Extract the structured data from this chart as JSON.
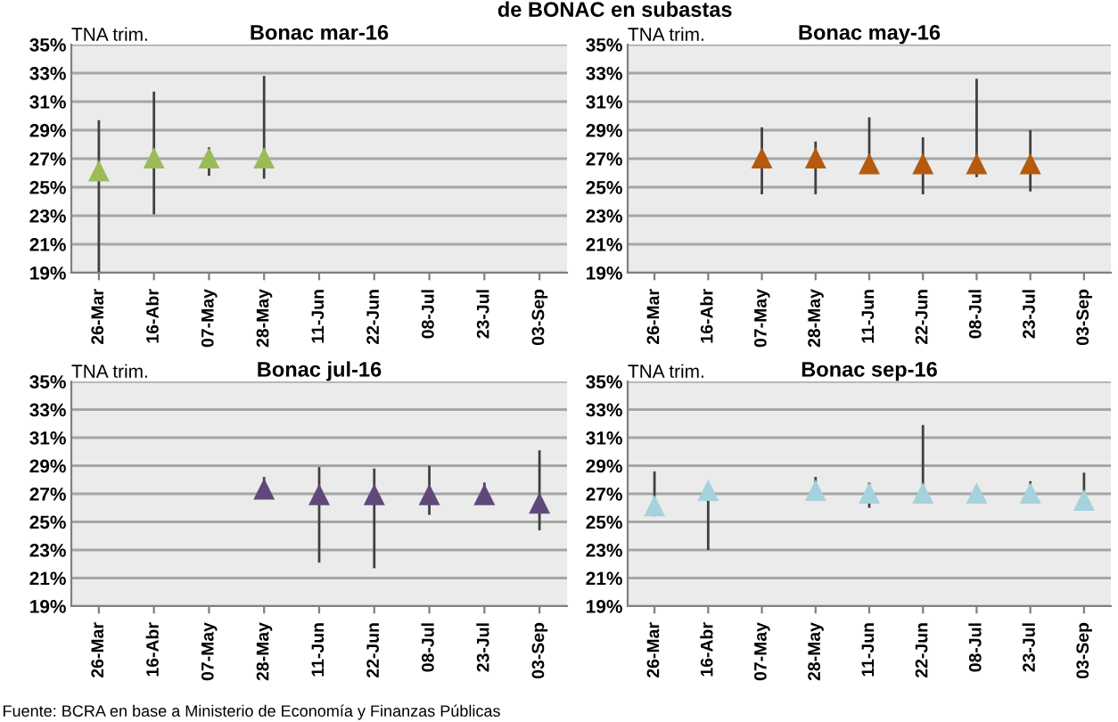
{
  "chart_data": [
    {
      "type": "scatter",
      "title": "Bonac mar-16",
      "ylabel": "TNA trim.",
      "annotations": [
        "de BONAC en subastas"
      ],
      "categories": [
        "26-Mar",
        "16-Abr",
        "07-May",
        "28-May",
        "11-Jun",
        "22-Jun",
        "08-Jul",
        "23-Jul",
        "03-Sep"
      ],
      "series": [
        {
          "color": "#9bbb59",
          "values": [
            26.1,
            27.0,
            27.0,
            27.0,
            null,
            null,
            null,
            null,
            null
          ],
          "errors": [
            [
              19,
              29.7
            ],
            [
              23.1,
              31.7
            ],
            [
              25.8,
              27.8
            ],
            [
              25.6,
              32.8
            ],
            null,
            null,
            null,
            null,
            null
          ]
        }
      ],
      "ylim": [
        19,
        35
      ],
      "yticks": [
        {
          "value": 19,
          "label": "19%"
        },
        {
          "value": 21,
          "label": "21%"
        },
        {
          "value": 23,
          "label": "23%"
        },
        {
          "value": 25,
          "label": "25%"
        },
        {
          "value": 27,
          "label": "27%"
        },
        {
          "value": 29,
          "label": "29%"
        },
        {
          "value": 31,
          "label": "31%"
        },
        {
          "value": 33,
          "label": "33%"
        },
        {
          "value": 35,
          "label": "35%"
        }
      ],
      "grid": "y",
      "marker": "triangle",
      "legend": false
    },
    {
      "type": "scatter",
      "title": "Bonac may-16",
      "ylabel": "TNA trim.",
      "categories": [
        "26-Mar",
        "16-Abr",
        "07-May",
        "28-May",
        "11-Jun",
        "22-Jun",
        "08-Jul",
        "23-Jul",
        "03-Sep"
      ],
      "series": [
        {
          "color": "#b55a0e",
          "values": [
            null,
            null,
            27.0,
            27.0,
            26.6,
            26.6,
            26.6,
            26.6,
            null
          ],
          "errors": [
            null,
            null,
            [
              24.5,
              29.2
            ],
            [
              24.5,
              28.2
            ],
            [
              26.0,
              29.9
            ],
            [
              24.5,
              28.5
            ],
            [
              25.7,
              32.6
            ],
            [
              24.7,
              29.0
            ],
            null
          ]
        }
      ],
      "ylim": [
        19,
        35
      ],
      "yticks": [
        {
          "value": 19,
          "label": "19%"
        },
        {
          "value": 21,
          "label": "21%"
        },
        {
          "value": 23,
          "label": "23%"
        },
        {
          "value": 25,
          "label": "25%"
        },
        {
          "value": 27,
          "label": "27%"
        },
        {
          "value": 29,
          "label": "29%"
        },
        {
          "value": 31,
          "label": "31%"
        },
        {
          "value": 33,
          "label": "33%"
        },
        {
          "value": 35,
          "label": "35%"
        }
      ],
      "grid": "y",
      "marker": "triangle",
      "legend": false
    },
    {
      "type": "scatter",
      "title": "Bonac jul-16",
      "ylabel": "TNA trim.",
      "annotations": [
        "Fuente: BCRA en base a Ministerio de Economía y Finanzas Públicas"
      ],
      "categories": [
        "26-Mar",
        "16-Abr",
        "07-May",
        "28-May",
        "11-Jun",
        "22-Jun",
        "08-Jul",
        "23-Jul",
        "03-Sep"
      ],
      "series": [
        {
          "color": "#60497a",
          "values": [
            null,
            null,
            null,
            27.3,
            26.9,
            26.9,
            26.9,
            26.9,
            26.3
          ],
          "errors": [
            null,
            null,
            null,
            [
              27.0,
              28.2
            ],
            [
              22.1,
              28.9
            ],
            [
              21.7,
              28.8
            ],
            [
              25.5,
              29.0
            ],
            [
              26.4,
              27.8
            ],
            [
              24.4,
              30.1
            ]
          ]
        }
      ],
      "ylim": [
        19,
        35
      ],
      "yticks": [
        {
          "value": 19,
          "label": "19%"
        },
        {
          "value": 21,
          "label": "21%"
        },
        {
          "value": 23,
          "label": "23%"
        },
        {
          "value": 25,
          "label": "25%"
        },
        {
          "value": 27,
          "label": "27%"
        },
        {
          "value": 29,
          "label": "29%"
        },
        {
          "value": 31,
          "label": "31%"
        },
        {
          "value": 33,
          "label": "33%"
        },
        {
          "value": 35,
          "label": "35%"
        }
      ],
      "grid": "y",
      "marker": "triangle",
      "legend": false
    },
    {
      "type": "scatter",
      "title": "Bonac sep-16",
      "ylabel": "TNA trim.",
      "categories": [
        "26-Mar",
        "16-Abr",
        "07-May",
        "28-May",
        "11-Jun",
        "22-Jun",
        "08-Jul",
        "23-Jul",
        "03-Sep"
      ],
      "series": [
        {
          "color": "#a5d2dc",
          "values": [
            26.1,
            27.2,
            null,
            27.2,
            27.0,
            27.0,
            27.0,
            27.0,
            26.5
          ],
          "errors": [
            [
              25.4,
              28.6
            ],
            [
              23.0,
              27.2
            ],
            null,
            [
              27.0,
              28.2
            ],
            [
              26.0,
              27.8
            ],
            [
              27.0,
              31.9
            ],
            null,
            [
              27.0,
              27.9
            ],
            [
              25.8,
              28.5
            ]
          ]
        }
      ],
      "ylim": [
        19,
        35
      ],
      "yticks": [
        {
          "value": 19,
          "label": "19%"
        },
        {
          "value": 21,
          "label": "21%"
        },
        {
          "value": 23,
          "label": "23%"
        },
        {
          "value": 25,
          "label": "25%"
        },
        {
          "value": 27,
          "label": "27%"
        },
        {
          "value": 29,
          "label": "29%"
        },
        {
          "value": 31,
          "label": "31%"
        },
        {
          "value": 33,
          "label": "33%"
        },
        {
          "value": 35,
          "label": "35%"
        }
      ],
      "grid": "y",
      "marker": "triangle",
      "legend": false
    }
  ]
}
